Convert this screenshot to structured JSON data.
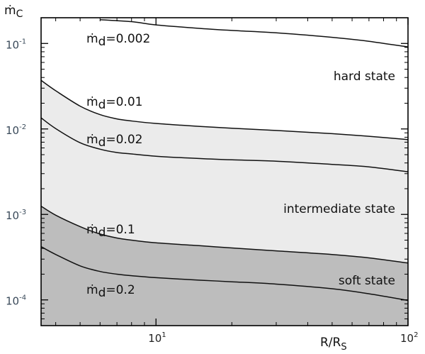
{
  "chart_data": {
    "type": "line",
    "x_scale": "log",
    "y_scale": "log",
    "xlim": [
      3.5,
      100
    ],
    "ylim": [
      5e-05,
      0.2
    ],
    "xlabel": {
      "main": "R/R",
      "sub": "S"
    },
    "ylabel": {
      "main": "ṁ",
      "sub": "C"
    },
    "x_ticks": [
      {
        "value": 10,
        "base": "10",
        "exp": "1"
      },
      {
        "value": 100,
        "base": "10",
        "exp": "2"
      }
    ],
    "y_ticks": [
      {
        "value": 0.1,
        "base": "10",
        "exp": "-1"
      },
      {
        "value": 0.01,
        "base": "10",
        "exp": "-2"
      },
      {
        "value": 0.001,
        "base": "10",
        "exp": "-3"
      },
      {
        "value": 0.0001,
        "base": "10",
        "exp": "-4"
      }
    ],
    "series": [
      {
        "name": "ṁd=0.002",
        "label_main": "ṁ",
        "label_sub": "d",
        "label_rest": "=0.002",
        "x": [
          6.0,
          8,
          10,
          15,
          20,
          30,
          50,
          70,
          100
        ],
        "y": [
          0.19,
          0.18,
          0.165,
          0.15,
          0.142,
          0.133,
          0.118,
          0.106,
          0.091
        ]
      },
      {
        "name": "ṁd=0.01",
        "label_main": "ṁ",
        "label_sub": "d",
        "label_rest": "=0.01",
        "x": [
          3.5,
          4,
          5,
          6,
          7,
          8,
          10,
          15,
          20,
          30,
          50,
          70,
          100
        ],
        "y": [
          0.037,
          0.028,
          0.0185,
          0.0147,
          0.0131,
          0.0124,
          0.0116,
          0.0107,
          0.0102,
          0.0096,
          0.0088,
          0.0082,
          0.0075
        ]
      },
      {
        "name": "ṁd=0.02",
        "label_main": "ṁ",
        "label_sub": "d",
        "label_rest": "=0.02",
        "x": [
          3.5,
          4,
          5,
          6,
          7,
          8,
          10,
          15,
          20,
          30,
          50,
          70,
          100
        ],
        "y": [
          0.0135,
          0.0101,
          0.0069,
          0.0058,
          0.0053,
          0.0051,
          0.0048,
          0.0045,
          0.00435,
          0.0042,
          0.00385,
          0.0036,
          0.00315
        ]
      },
      {
        "name": "ṁd=0.1",
        "label_main": "ṁ",
        "label_sub": "d",
        "label_rest": "=0.1",
        "x": [
          3.5,
          4,
          5,
          6,
          7,
          8,
          10,
          15,
          20,
          30,
          50,
          70,
          100
        ],
        "y": [
          0.00125,
          0.00098,
          0.00072,
          0.00059,
          0.00053,
          0.0005,
          0.000465,
          0.00043,
          0.000405,
          0.000375,
          0.00034,
          0.00031,
          0.00027
        ]
      },
      {
        "name": "ṁd=0.2",
        "label_main": "ṁ",
        "label_sub": "d",
        "label_rest": "=0.2",
        "x": [
          3.5,
          4,
          5,
          6,
          7,
          8,
          10,
          15,
          20,
          30,
          50,
          70,
          100
        ],
        "y": [
          0.00042,
          0.00034,
          0.00025,
          0.000215,
          0.0002,
          0.000192,
          0.000182,
          0.00017,
          0.000163,
          0.000153,
          0.000135,
          0.000118,
          9.85e-05
        ]
      }
    ],
    "regions": [
      {
        "name": "hard state",
        "color": "#ffffff"
      },
      {
        "name": "intermediate state",
        "color": "#ebebeb",
        "between": [
          "ṁd=0.01",
          "ṁd=0.1"
        ]
      },
      {
        "name": "soft state",
        "color": "#bdbdbd",
        "below": "ṁd=0.1"
      }
    ],
    "colors": {
      "line": "#111111",
      "axis": "#000000",
      "tick_label": "#3a4a5a"
    }
  }
}
